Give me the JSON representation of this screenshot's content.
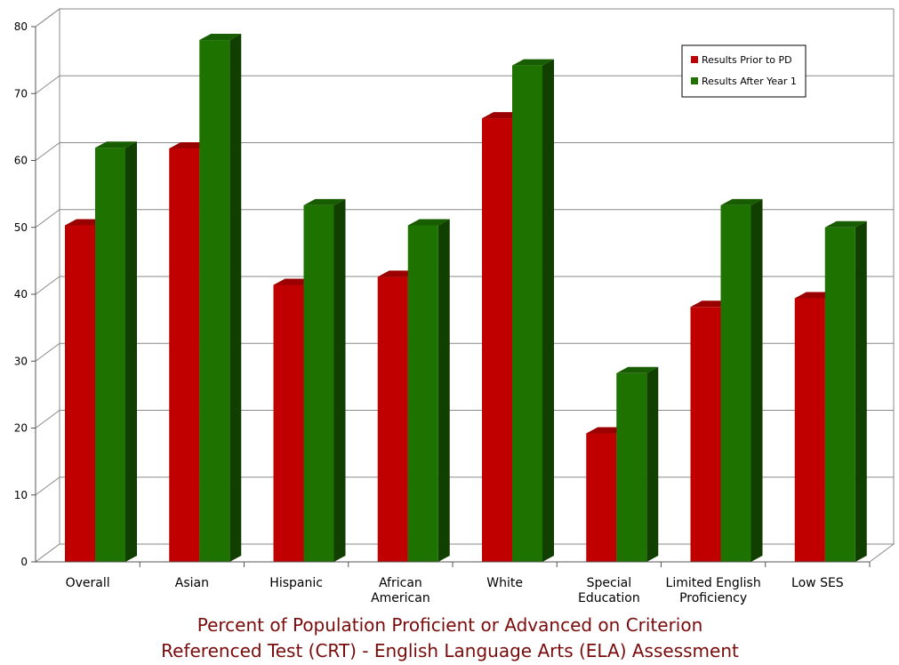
{
  "chart_data": {
    "type": "bar",
    "title_lines": [
      "Percent of Population Proficient or Advanced on Criterion",
      "Referenced Test (CRT) - English Language Arts (ELA) Assessment"
    ],
    "categories": [
      [
        "Overall"
      ],
      [
        "Asian"
      ],
      [
        "Hispanic"
      ],
      [
        "African",
        "American"
      ],
      [
        "White"
      ],
      [
        "Special",
        "Education"
      ],
      [
        "Limited English",
        "Proficiency"
      ],
      [
        "Low SES"
      ]
    ],
    "series": [
      {
        "name": "Results Prior to PD",
        "color": "#c00000",
        "values": [
          50.3,
          61.8,
          41.4,
          42.6,
          66.3,
          19.2,
          38.1,
          39.4
        ]
      },
      {
        "name": "Results After Year 1",
        "color": "#1e7300",
        "values": [
          61.9,
          78.0,
          53.3,
          50.3,
          74.2,
          28.2,
          53.3,
          50.0
        ]
      }
    ],
    "ylim": [
      0,
      80
    ],
    "yticks": [
      0,
      10,
      20,
      30,
      40,
      50,
      60,
      70,
      80
    ],
    "grid": true,
    "legend_position": "top-right",
    "style": "3d-clustered-column"
  }
}
